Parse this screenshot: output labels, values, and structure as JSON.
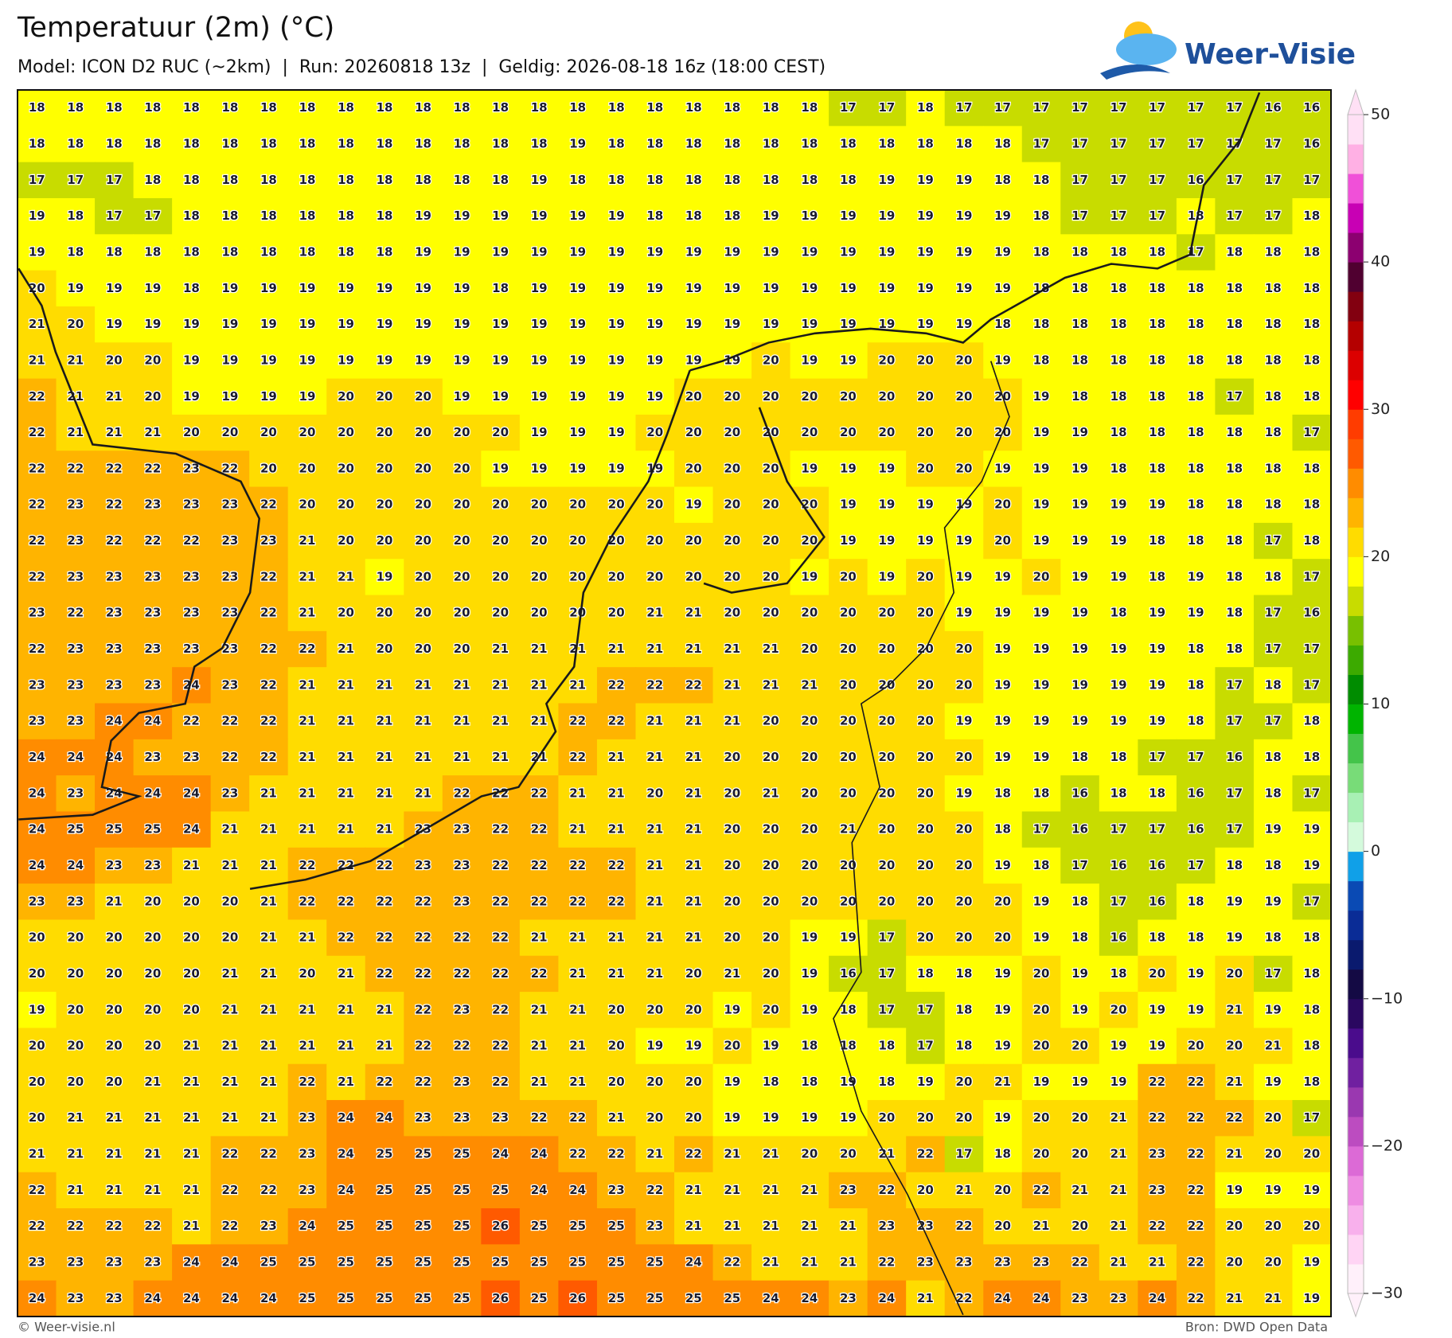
{
  "header": {
    "title": "Temperatuur (2m) (°C)",
    "subtitle": "Model: ICON D2 RUC (~2km)  |  Run: 20260818 13z  |  Geldig: 2026-08-18 16z (18:00 CEST)",
    "logo": "Weer-Visie"
  },
  "map": {
    "grid": [
      [
        18,
        18,
        18,
        18,
        18,
        18,
        18,
        18,
        18,
        18,
        18,
        18,
        18,
        18,
        18,
        18,
        18,
        18,
        18,
        18,
        18,
        17,
        17,
        18,
        17,
        17,
        17,
        17,
        17,
        17,
        17,
        17,
        16,
        16
      ],
      [
        18,
        18,
        18,
        18,
        18,
        18,
        18,
        18,
        18,
        18,
        18,
        18,
        18,
        18,
        19,
        18,
        18,
        18,
        18,
        18,
        18,
        18,
        18,
        18,
        18,
        18,
        17,
        17,
        17,
        17,
        17,
        17,
        17,
        16
      ],
      [
        17,
        17,
        17,
        18,
        18,
        18,
        18,
        18,
        18,
        18,
        18,
        18,
        18,
        19,
        18,
        18,
        18,
        18,
        18,
        18,
        18,
        18,
        19,
        19,
        19,
        18,
        18,
        17,
        17,
        17,
        16,
        17,
        17,
        17
      ],
      [
        19,
        18,
        17,
        17,
        18,
        18,
        18,
        18,
        18,
        18,
        19,
        19,
        19,
        19,
        19,
        19,
        18,
        18,
        18,
        19,
        19,
        19,
        19,
        19,
        19,
        19,
        18,
        17,
        17,
        17,
        18,
        17,
        17,
        18
      ],
      [
        19,
        18,
        18,
        18,
        18,
        18,
        18,
        18,
        18,
        18,
        19,
        19,
        19,
        19,
        19,
        19,
        19,
        19,
        19,
        19,
        19,
        19,
        19,
        19,
        19,
        19,
        18,
        18,
        18,
        18,
        17,
        18,
        18,
        18
      ],
      [
        20,
        19,
        19,
        19,
        18,
        19,
        19,
        19,
        19,
        19,
        19,
        19,
        18,
        19,
        19,
        19,
        19,
        19,
        19,
        19,
        19,
        19,
        19,
        19,
        19,
        19,
        18,
        18,
        18,
        18,
        18,
        18,
        18,
        18
      ],
      [
        21,
        20,
        19,
        19,
        19,
        19,
        19,
        19,
        19,
        19,
        19,
        19,
        19,
        19,
        19,
        19,
        19,
        19,
        19,
        19,
        19,
        19,
        19,
        19,
        19,
        18,
        18,
        18,
        18,
        18,
        18,
        18,
        18,
        18
      ],
      [
        21,
        21,
        20,
        20,
        19,
        19,
        19,
        19,
        19,
        19,
        19,
        19,
        19,
        19,
        19,
        19,
        19,
        19,
        19,
        20,
        19,
        19,
        20,
        20,
        20,
        19,
        18,
        18,
        18,
        18,
        18,
        18,
        18,
        18
      ],
      [
        22,
        21,
        21,
        20,
        19,
        19,
        19,
        19,
        20,
        20,
        20,
        19,
        19,
        19,
        19,
        19,
        19,
        20,
        20,
        20,
        20,
        20,
        20,
        20,
        20,
        20,
        19,
        18,
        18,
        18,
        18,
        17,
        18,
        18
      ],
      [
        22,
        21,
        21,
        21,
        20,
        20,
        20,
        20,
        20,
        20,
        20,
        20,
        20,
        19,
        19,
        19,
        20,
        20,
        20,
        20,
        20,
        20,
        20,
        20,
        20,
        20,
        19,
        19,
        18,
        18,
        18,
        18,
        18,
        17
      ],
      [
        22,
        22,
        22,
        22,
        23,
        22,
        20,
        20,
        20,
        20,
        20,
        20,
        19,
        19,
        19,
        19,
        19,
        20,
        20,
        20,
        19,
        19,
        19,
        20,
        20,
        19,
        19,
        19,
        18,
        18,
        18,
        18,
        18,
        18
      ],
      [
        22,
        23,
        22,
        23,
        23,
        23,
        22,
        20,
        20,
        20,
        20,
        20,
        20,
        20,
        20,
        20,
        20,
        19,
        20,
        20,
        20,
        19,
        19,
        19,
        19,
        20,
        19,
        19,
        19,
        19,
        18,
        18,
        18,
        18
      ],
      [
        22,
        23,
        22,
        22,
        22,
        23,
        23,
        21,
        20,
        20,
        20,
        20,
        20,
        20,
        20,
        20,
        20,
        20,
        20,
        20,
        20,
        19,
        19,
        19,
        19,
        20,
        19,
        19,
        19,
        18,
        18,
        18,
        17,
        18
      ],
      [
        22,
        23,
        23,
        23,
        23,
        23,
        22,
        21,
        21,
        19,
        20,
        20,
        20,
        20,
        20,
        20,
        20,
        20,
        20,
        20,
        19,
        20,
        19,
        20,
        19,
        19,
        20,
        19,
        19,
        18,
        19,
        18,
        18,
        17
      ],
      [
        23,
        22,
        23,
        23,
        23,
        23,
        22,
        21,
        20,
        20,
        20,
        20,
        20,
        20,
        20,
        20,
        21,
        21,
        20,
        20,
        20,
        20,
        20,
        20,
        19,
        19,
        19,
        19,
        18,
        19,
        19,
        18,
        17,
        16
      ],
      [
        22,
        23,
        23,
        23,
        23,
        23,
        22,
        22,
        21,
        20,
        20,
        20,
        21,
        21,
        21,
        21,
        21,
        21,
        21,
        21,
        20,
        20,
        20,
        20,
        20,
        19,
        19,
        19,
        19,
        19,
        18,
        18,
        17,
        17
      ],
      [
        23,
        23,
        23,
        23,
        24,
        23,
        22,
        21,
        21,
        21,
        21,
        21,
        21,
        21,
        21,
        22,
        22,
        22,
        21,
        21,
        21,
        20,
        20,
        20,
        20,
        19,
        19,
        19,
        19,
        19,
        18,
        17,
        18,
        17
      ],
      [
        23,
        23,
        24,
        24,
        22,
        22,
        22,
        21,
        21,
        21,
        21,
        21,
        21,
        21,
        22,
        22,
        21,
        21,
        21,
        20,
        20,
        20,
        20,
        20,
        19,
        19,
        19,
        19,
        19,
        19,
        18,
        17,
        17,
        18
      ],
      [
        24,
        24,
        24,
        23,
        23,
        22,
        22,
        21,
        21,
        21,
        21,
        21,
        21,
        21,
        22,
        21,
        21,
        21,
        20,
        20,
        20,
        20,
        20,
        20,
        20,
        19,
        19,
        18,
        18,
        17,
        17,
        16,
        18,
        18
      ],
      [
        24,
        23,
        24,
        24,
        24,
        23,
        21,
        21,
        21,
        21,
        21,
        22,
        22,
        22,
        21,
        21,
        20,
        21,
        20,
        21,
        20,
        20,
        20,
        20,
        19,
        18,
        18,
        16,
        18,
        18,
        16,
        17,
        18,
        17
      ],
      [
        24,
        25,
        25,
        25,
        24,
        21,
        21,
        21,
        21,
        21,
        23,
        23,
        22,
        22,
        21,
        21,
        21,
        21,
        20,
        20,
        20,
        21,
        20,
        20,
        20,
        18,
        17,
        16,
        17,
        17,
        16,
        17,
        19,
        19
      ],
      [
        24,
        24,
        23,
        23,
        21,
        21,
        21,
        22,
        22,
        22,
        23,
        23,
        22,
        22,
        22,
        22,
        21,
        21,
        20,
        20,
        20,
        20,
        20,
        20,
        20,
        19,
        18,
        17,
        16,
        16,
        17,
        18,
        18,
        19
      ],
      [
        23,
        23,
        21,
        20,
        20,
        20,
        21,
        22,
        22,
        22,
        22,
        23,
        22,
        22,
        22,
        22,
        21,
        21,
        20,
        20,
        20,
        20,
        20,
        20,
        20,
        20,
        19,
        18,
        17,
        16,
        18,
        19,
        19,
        17
      ],
      [
        20,
        20,
        20,
        20,
        20,
        20,
        21,
        21,
        22,
        22,
        22,
        22,
        22,
        21,
        21,
        21,
        21,
        21,
        20,
        20,
        19,
        19,
        17,
        20,
        20,
        20,
        19,
        18,
        16,
        18,
        18,
        19,
        18,
        18
      ],
      [
        20,
        20,
        20,
        20,
        20,
        21,
        21,
        20,
        21,
        22,
        22,
        22,
        22,
        22,
        21,
        21,
        21,
        20,
        21,
        20,
        19,
        16,
        17,
        18,
        18,
        19,
        20,
        19,
        18,
        20,
        19,
        20,
        17,
        18
      ],
      [
        19,
        20,
        20,
        20,
        20,
        21,
        21,
        21,
        21,
        21,
        22,
        23,
        22,
        21,
        21,
        20,
        20,
        20,
        19,
        20,
        19,
        18,
        17,
        17,
        18,
        19,
        20,
        19,
        20,
        19,
        19,
        21,
        19,
        18
      ],
      [
        20,
        20,
        20,
        20,
        21,
        21,
        21,
        21,
        21,
        21,
        22,
        22,
        22,
        21,
        21,
        20,
        19,
        19,
        20,
        19,
        18,
        18,
        18,
        17,
        18,
        19,
        20,
        20,
        19,
        19,
        20,
        20,
        21,
        18
      ],
      [
        20,
        20,
        20,
        21,
        21,
        21,
        21,
        22,
        21,
        22,
        22,
        23,
        22,
        21,
        21,
        20,
        20,
        20,
        19,
        18,
        18,
        19,
        18,
        19,
        20,
        21,
        19,
        19,
        19,
        22,
        22,
        21,
        19,
        18
      ],
      [
        20,
        21,
        21,
        21,
        21,
        21,
        21,
        23,
        24,
        24,
        23,
        23,
        23,
        22,
        22,
        21,
        20,
        20,
        19,
        19,
        19,
        19,
        20,
        20,
        20,
        19,
        20,
        20,
        21,
        22,
        22,
        22,
        20,
        17
      ],
      [
        21,
        21,
        21,
        21,
        21,
        22,
        22,
        23,
        24,
        25,
        25,
        25,
        24,
        24,
        22,
        22,
        21,
        22,
        21,
        21,
        20,
        20,
        21,
        22,
        17,
        18,
        20,
        20,
        21,
        23,
        22,
        21,
        20,
        20
      ],
      [
        22,
        21,
        21,
        21,
        21,
        22,
        22,
        23,
        24,
        25,
        25,
        25,
        25,
        24,
        24,
        23,
        22,
        21,
        21,
        21,
        21,
        23,
        22,
        20,
        21,
        20,
        22,
        21,
        21,
        23,
        22,
        19,
        19,
        19
      ],
      [
        22,
        22,
        22,
        22,
        21,
        22,
        23,
        24,
        25,
        25,
        25,
        25,
        26,
        25,
        25,
        25,
        23,
        21,
        21,
        21,
        21,
        21,
        23,
        23,
        22,
        20,
        21,
        20,
        21,
        22,
        22,
        20,
        20,
        20
      ],
      [
        23,
        23,
        23,
        23,
        24,
        24,
        25,
        25,
        25,
        25,
        25,
        25,
        25,
        25,
        25,
        25,
        25,
        24,
        22,
        21,
        21,
        21,
        22,
        23,
        23,
        23,
        23,
        22,
        21,
        21,
        22,
        20,
        20,
        19
      ],
      [
        24,
        23,
        23,
        24,
        24,
        24,
        24,
        25,
        25,
        25,
        25,
        25,
        26,
        25,
        26,
        25,
        25,
        25,
        25,
        24,
        24,
        23,
        24,
        21,
        22,
        24,
        24,
        23,
        23,
        24,
        22,
        21,
        21,
        19
      ]
    ]
  },
  "colorbar": {
    "range": [
      -30,
      50
    ],
    "colors": [
      "#fff0fa",
      "#ffd4f4",
      "#f8b0ec",
      "#ee8ce2",
      "#dc6ad6",
      "#bc4cc0",
      "#9a38b0",
      "#7020a0",
      "#4a0c8c",
      "#2a0860",
      "#140a44",
      "#0a1a6e",
      "#0a2c96",
      "#0a4ab4",
      "#10a0e8",
      "#d4fadc",
      "#a8f0b4",
      "#78dc78",
      "#44c44a",
      "#00b400",
      "#008c00",
      "#3caa00",
      "#78c000",
      "#c8dc00",
      "#ffff00",
      "#ffdc00",
      "#ffb400",
      "#ff8c00",
      "#ff5a00",
      "#ff3c00",
      "#ff0000",
      "#dc0000",
      "#b40000",
      "#820010",
      "#500030",
      "#8c0070",
      "#c800b4",
      "#f050d8",
      "#ffb0e4",
      "#ffe0f5"
    ],
    "ticks": [
      50,
      40,
      30,
      20,
      10,
      0,
      {
        "value": -10,
        "label": "−10"
      },
      {
        "value": -20,
        "label": "−20"
      },
      {
        "value": -30,
        "label": "−30"
      }
    ]
  },
  "footer": {
    "left": "© Weer-visie.nl",
    "right": "Bron: DWD Open Data"
  }
}
